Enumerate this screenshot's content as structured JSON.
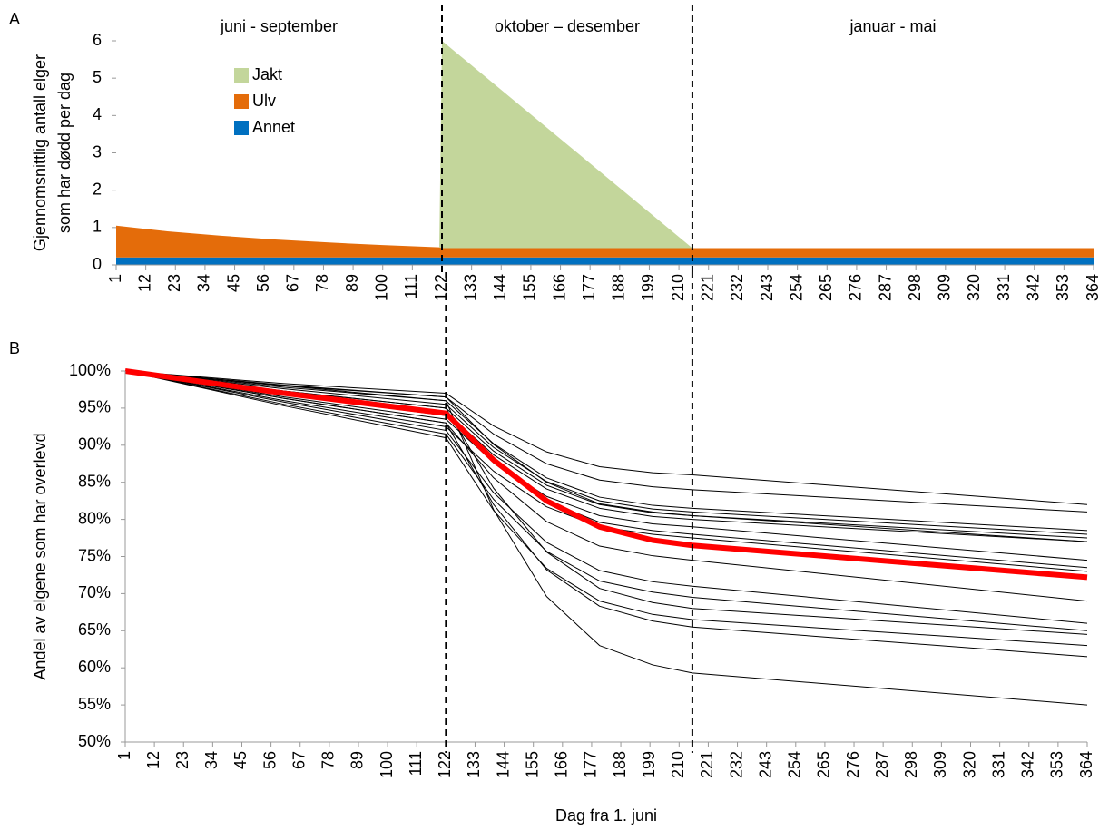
{
  "chart_data": [
    {
      "type": "area",
      "panel": "A",
      "ylabel": [
        "Gjennomsnittlig antall elger",
        "som har dødd per dag"
      ],
      "periods": [
        "juni - september",
        "oktober – desember",
        "januar - mai"
      ],
      "dividers": [
        122,
        215
      ],
      "legend": "upper left",
      "x": [
        1,
        20,
        40,
        60,
        80,
        100,
        121,
        122,
        215,
        216,
        364
      ],
      "series": [
        {
          "name": "Jakt",
          "color": "#c3d69b",
          "values": [
            0,
            0,
            0,
            0,
            0,
            0,
            0,
            5.55,
            0,
            0,
            0
          ]
        },
        {
          "name": "Ulv",
          "color": "#e46c0a",
          "values": [
            0.85,
            0.7,
            0.58,
            0.48,
            0.4,
            0.33,
            0.27,
            0.25,
            0.25,
            0.25,
            0.25
          ]
        },
        {
          "name": "Annet",
          "color": "#0070c0",
          "values": [
            0.2,
            0.2,
            0.2,
            0.2,
            0.2,
            0.2,
            0.2,
            0.2,
            0.2,
            0.2,
            0.2
          ]
        }
      ],
      "xlim": [
        1,
        364
      ],
      "xticks": [
        1,
        12,
        23,
        34,
        45,
        56,
        67,
        78,
        89,
        100,
        111,
        122,
        133,
        144,
        155,
        166,
        177,
        188,
        199,
        210,
        221,
        232,
        243,
        254,
        265,
        276,
        287,
        298,
        309,
        320,
        331,
        342,
        353,
        364
      ],
      "ylim": [
        0,
        6
      ],
      "yticks": [
        0,
        1,
        2,
        3,
        4,
        5,
        6
      ]
    },
    {
      "type": "line",
      "panel": "B",
      "ylabel": [
        "Andel av elgene som har overlevd"
      ],
      "xlabel": "Dag fra 1. juni",
      "dividers": [
        122,
        215
      ],
      "x": [
        1,
        61,
        122,
        140,
        160,
        180,
        200,
        215,
        364
      ],
      "series": [
        {
          "color": "#000000",
          "width": 1,
          "values": [
            100,
            98.3,
            97,
            92.6,
            89.1,
            87.1,
            86.3,
            86,
            82
          ]
        },
        {
          "color": "#000000",
          "width": 1,
          "values": [
            100,
            98.1,
            96.5,
            91.5,
            87.5,
            85.3,
            84.4,
            84,
            81
          ]
        },
        {
          "color": "#000000",
          "width": 1,
          "values": [
            100,
            97.8,
            96,
            90.2,
            85.6,
            83,
            81.9,
            81.5,
            78.5
          ]
        },
        {
          "color": "#000000",
          "width": 1,
          "values": [
            100,
            97.6,
            95.5,
            89.7,
            85.1,
            82.5,
            81.4,
            81,
            78
          ]
        },
        {
          "color": "#000000",
          "width": 1,
          "values": [
            100,
            97.3,
            95,
            89.2,
            84.6,
            82,
            80.9,
            80.5,
            77.5
          ]
        },
        {
          "color": "#000000",
          "width": 1,
          "values": [
            100,
            98,
            96.5,
            90.1,
            85,
            82.1,
            81,
            80.5,
            77
          ]
        },
        {
          "color": "#000000",
          "width": 1,
          "values": [
            100,
            97,
            94.5,
            88.7,
            84.1,
            81.5,
            80.4,
            80,
            77
          ]
        },
        {
          "color": "#000000",
          "width": 1,
          "values": [
            100,
            96.5,
            93.5,
            87.7,
            83.1,
            80.5,
            79.4,
            79,
            74.5
          ]
        },
        {
          "color": "#000000",
          "width": 1,
          "values": [
            100,
            96.8,
            94,
            87.6,
            82.5,
            79.6,
            78.5,
            78,
            73.5
          ]
        },
        {
          "color": "#000000",
          "width": 1,
          "values": [
            100,
            96,
            92.5,
            86.5,
            81.7,
            79,
            78,
            77.5,
            73
          ]
        },
        {
          "color": "#000000",
          "width": 1,
          "values": [
            100,
            96.3,
            93,
            85.6,
            79.7,
            76.4,
            75.1,
            74.5,
            69
          ]
        },
        {
          "color": "#000000",
          "width": 1,
          "values": [
            100,
            95.8,
            92,
            83.6,
            76.9,
            73.1,
            71.6,
            71,
            66
          ]
        },
        {
          "color": "#000000",
          "width": 1,
          "values": [
            100,
            95.5,
            91.5,
            82.7,
            75.7,
            71.7,
            70.2,
            69.5,
            65
          ]
        },
        {
          "color": "#000000",
          "width": 1,
          "values": [
            100,
            97.3,
            95,
            84.2,
            75.6,
            70.7,
            68.8,
            68,
            64.5
          ]
        },
        {
          "color": "#000000",
          "width": 1,
          "values": [
            100,
            95.3,
            91,
            81.2,
            73.4,
            69,
            67.2,
            66.5,
            63
          ]
        },
        {
          "color": "#000000",
          "width": 1,
          "values": [
            100,
            96.3,
            93,
            82,
            73.2,
            68.3,
            66.3,
            65.5,
            61.5
          ]
        },
        {
          "color": "#000000",
          "width": 1,
          "values": [
            100,
            98,
            96,
            81.3,
            69.6,
            63,
            60.4,
            59.3,
            55
          ]
        },
        {
          "color": "#ff0000",
          "width": 6,
          "values": [
            100,
            97,
            94.3,
            88,
            82.5,
            79,
            77.2,
            76.5,
            72.2
          ]
        }
      ],
      "xlim": [
        1,
        364
      ],
      "xticks": [
        1,
        12,
        23,
        34,
        45,
        56,
        67,
        78,
        89,
        100,
        111,
        122,
        133,
        144,
        155,
        166,
        177,
        188,
        199,
        210,
        221,
        232,
        243,
        254,
        265,
        276,
        287,
        298,
        309,
        320,
        331,
        342,
        353,
        364
      ],
      "ylim": [
        50,
        100
      ],
      "yticks": [
        {
          "value": 50,
          "label": "50%"
        },
        {
          "value": 55,
          "label": "55%"
        },
        {
          "value": 60,
          "label": "60%"
        },
        {
          "value": 65,
          "label": "65%"
        },
        {
          "value": 70,
          "label": "70%"
        },
        {
          "value": 75,
          "label": "75%"
        },
        {
          "value": 80,
          "label": "80%"
        },
        {
          "value": 85,
          "label": "85%"
        },
        {
          "value": 90,
          "label": "90%"
        },
        {
          "value": 95,
          "label": "95%"
        },
        {
          "value": 100,
          "label": "100%"
        }
      ]
    }
  ]
}
